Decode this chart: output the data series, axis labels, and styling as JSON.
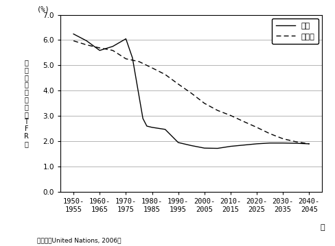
{
  "unit_label": "(%)",
  "xlabel": "年",
  "ylabel_chars": [
    "合",
    "計",
    "特",
    "殊",
    "出",
    "生",
    "率",
    "（",
    "T",
    "F",
    "R",
    "）"
  ],
  "source": "資料：（United Nations, 2006）",
  "x_labels": [
    "1950-\n1955",
    "1960-\n1965",
    "1970-\n1975",
    "1980-\n1985",
    "1990-\n1995",
    "2000-\n2005",
    "2010-\n2015",
    "2020-\n2025",
    "2030-\n2035",
    "2040-\n2045"
  ],
  "x_positions": [
    0,
    1,
    2,
    3,
    4,
    5,
    6,
    7,
    8,
    9
  ],
  "ylim": [
    0.0,
    7.0
  ],
  "yticks": [
    0.0,
    1.0,
    2.0,
    3.0,
    4.0,
    5.0,
    6.0,
    7.0
  ],
  "china_color": "#000000",
  "india_color": "#000000",
  "legend_china": "中国",
  "legend_india": "インド",
  "china_x": [
    0,
    0.5,
    1.0,
    1.5,
    2.0,
    2.25,
    2.5,
    2.65,
    2.8,
    3.0,
    3.5,
    4.0,
    4.5,
    5.0,
    5.5,
    6.0,
    6.5,
    7.0,
    7.5,
    8.0,
    8.5,
    9.0
  ],
  "china_y": [
    6.24,
    5.97,
    5.59,
    5.75,
    6.05,
    5.3,
    3.8,
    2.9,
    2.6,
    2.55,
    2.47,
    1.95,
    1.83,
    1.73,
    1.72,
    1.8,
    1.85,
    1.9,
    1.93,
    1.93,
    1.92,
    1.9
  ],
  "india_x": [
    0,
    0.5,
    1.0,
    1.5,
    2.0,
    2.5,
    3.0,
    3.5,
    4.0,
    4.5,
    5.0,
    5.5,
    6.0,
    6.5,
    7.0,
    7.5,
    8.0,
    8.5,
    9.0
  ],
  "india_y": [
    5.97,
    5.81,
    5.69,
    5.59,
    5.26,
    5.15,
    4.9,
    4.64,
    4.26,
    3.9,
    3.5,
    3.22,
    3.02,
    2.78,
    2.55,
    2.3,
    2.1,
    1.98,
    1.9
  ],
  "grid_color": "#aaaaaa",
  "frame_color": "#000000",
  "tick_fontsize": 7.5,
  "source_fontsize": 6.5
}
